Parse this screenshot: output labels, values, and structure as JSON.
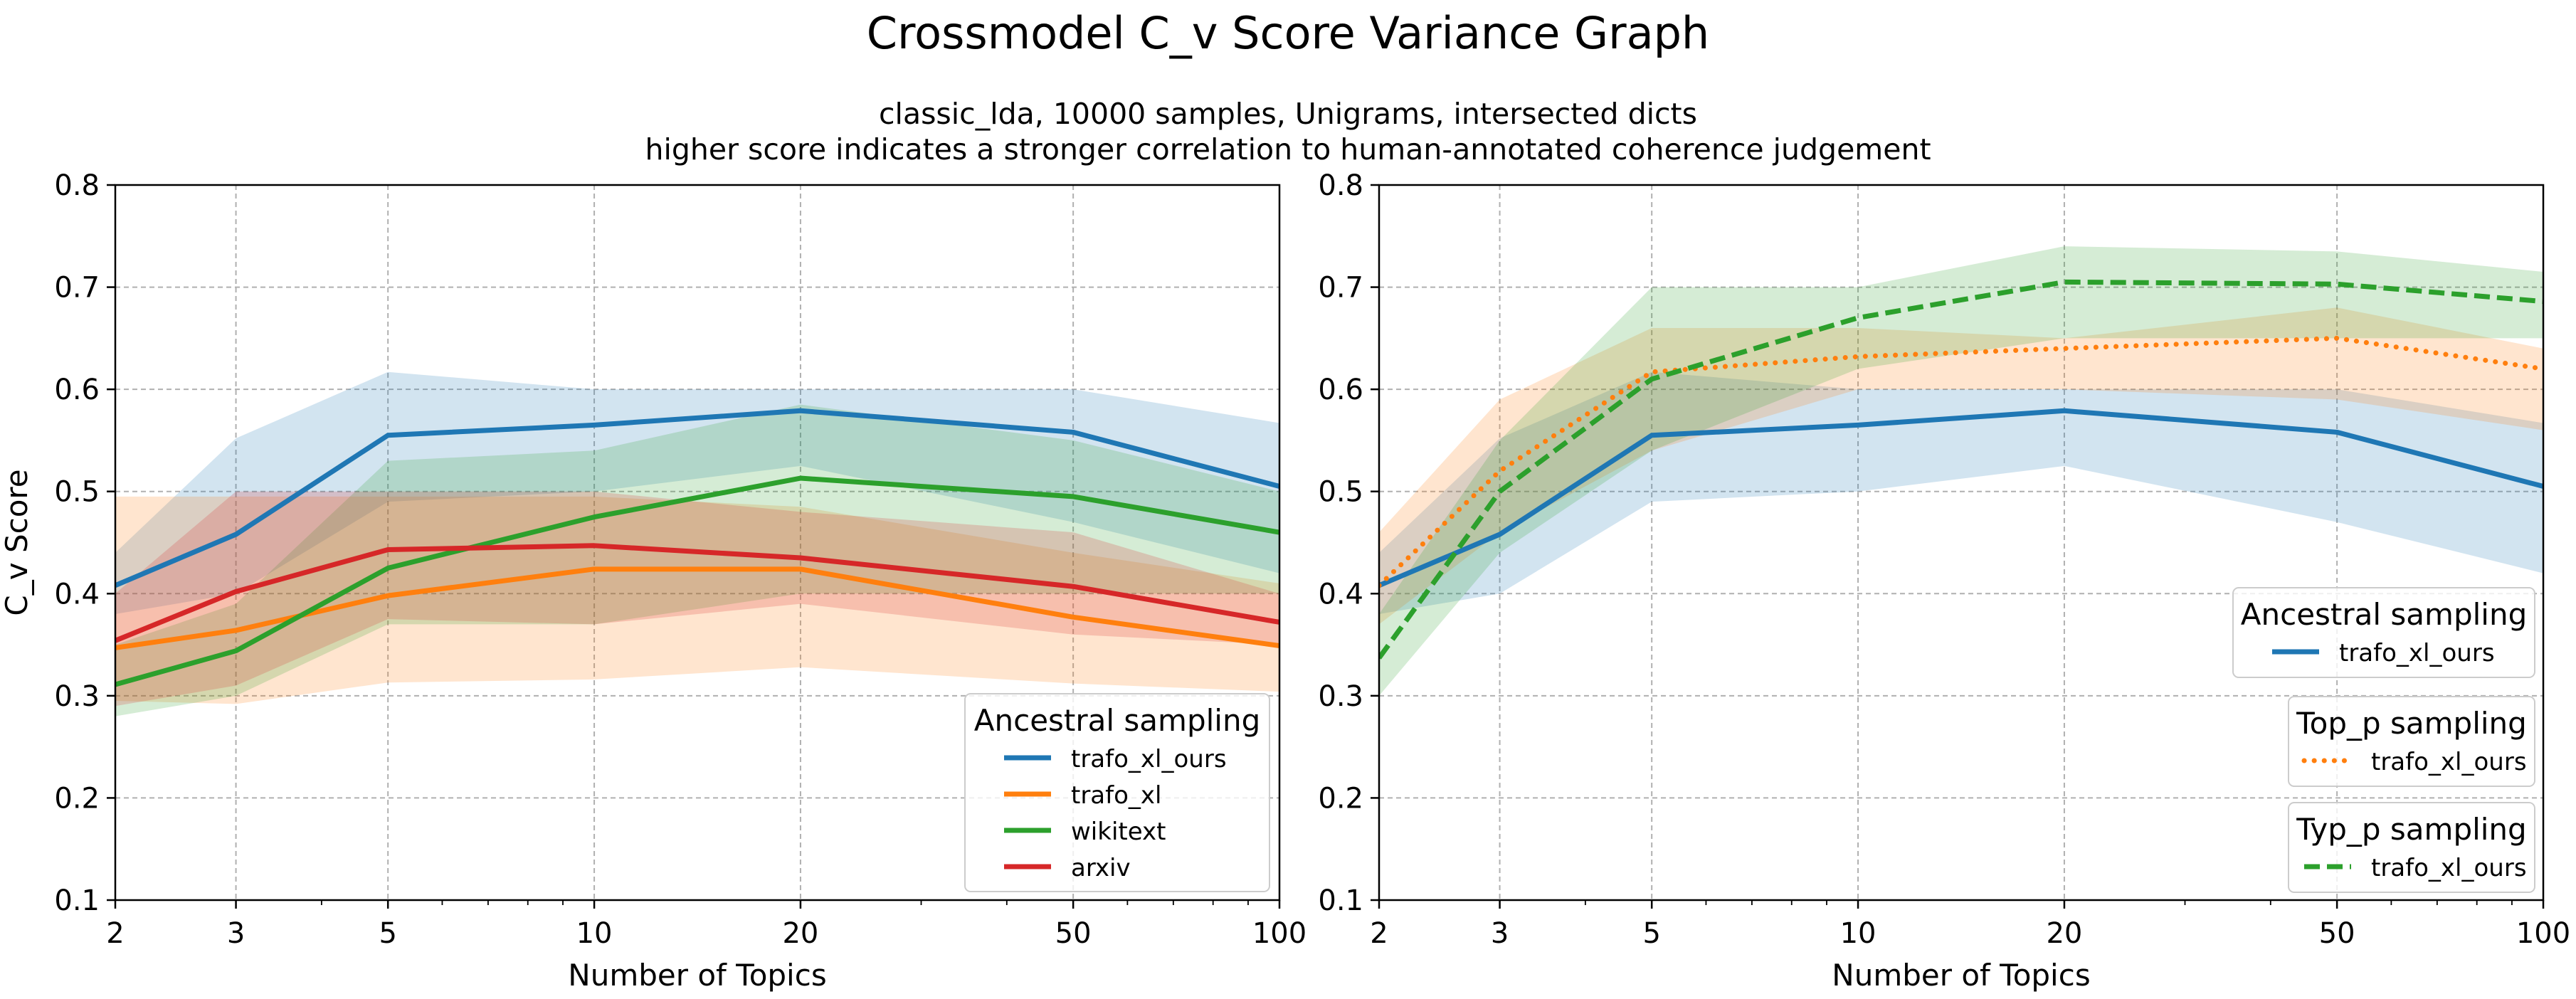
{
  "figure": {
    "title": "Crossmodel C_v Score Variance Graph",
    "subtitle_line1": "classic_lda, 10000 samples, Unigrams, intersected dicts",
    "subtitle_line2": "higher score indicates a stronger correlation to human-annotated coherence judgement"
  },
  "colors": {
    "trafo_xl_ours": "#1f77b4",
    "trafo_xl": "#ff7f0e",
    "wikitext": "#2ca02c",
    "arxiv": "#d62728"
  },
  "chart_data": [
    {
      "type": "line",
      "xlabel": "Number of Topics",
      "ylabel": "C_v Score",
      "xscale": "log",
      "xlim": [
        2,
        100
      ],
      "ylim": [
        0.1,
        0.8
      ],
      "x_ticks": [
        2,
        3,
        5,
        10,
        20,
        50,
        100
      ],
      "x_tick_labels": [
        "2",
        "3",
        "5",
        "10",
        "20",
        "50",
        "100"
      ],
      "y_ticks": [
        0.1,
        0.2,
        0.3,
        0.4,
        0.5,
        0.6,
        0.7,
        0.8
      ],
      "y_tick_labels": [
        "0.1",
        "0.2",
        "0.3",
        "0.4",
        "0.5",
        "0.6",
        "0.7",
        "0.8"
      ],
      "grid": true,
      "x": [
        2,
        3,
        5,
        10,
        20,
        50,
        100
      ],
      "series": [
        {
          "name": "trafo_xl_ours",
          "color": "#1f77b4",
          "style": "solid",
          "values": [
            0.408,
            0.458,
            0.555,
            0.565,
            0.579,
            0.558,
            0.505
          ],
          "band_low": [
            0.38,
            0.4,
            0.49,
            0.5,
            0.525,
            0.47,
            0.42
          ],
          "band_high": [
            0.44,
            0.552,
            0.617,
            0.6,
            0.6,
            0.6,
            0.567
          ]
        },
        {
          "name": "trafo_xl",
          "color": "#ff7f0e",
          "style": "solid",
          "values": [
            0.347,
            0.364,
            0.398,
            0.424,
            0.424,
            0.377,
            0.349
          ],
          "band_low": [
            0.295,
            0.292,
            0.313,
            0.316,
            0.328,
            0.312,
            0.304
          ],
          "band_high": [
            0.495,
            0.495,
            0.495,
            0.495,
            0.485,
            0.44,
            0.41
          ]
        },
        {
          "name": "wikitext",
          "color": "#2ca02c",
          "style": "solid",
          "values": [
            0.311,
            0.344,
            0.425,
            0.475,
            0.513,
            0.495,
            0.46
          ],
          "band_low": [
            0.28,
            0.3,
            0.37,
            0.37,
            0.4,
            0.4,
            0.4
          ],
          "band_high": [
            0.35,
            0.39,
            0.53,
            0.54,
            0.585,
            0.55,
            0.5
          ]
        },
        {
          "name": "arxiv",
          "color": "#d62728",
          "style": "solid",
          "values": [
            0.354,
            0.402,
            0.443,
            0.447,
            0.435,
            0.407,
            0.372
          ],
          "band_low": [
            0.29,
            0.31,
            0.375,
            0.37,
            0.39,
            0.36,
            0.35
          ],
          "band_high": [
            0.4,
            0.5,
            0.5,
            0.5,
            0.48,
            0.46,
            0.4
          ]
        }
      ],
      "legends": [
        {
          "title": "Ancestral sampling",
          "placement": "lower-right",
          "entries": [
            "trafo_xl_ours",
            "trafo_xl",
            "wikitext",
            "arxiv"
          ]
        }
      ]
    },
    {
      "type": "line",
      "xlabel": "Number of Topics",
      "ylabel": "",
      "xscale": "log",
      "xlim": [
        2,
        100
      ],
      "ylim": [
        0.1,
        0.8
      ],
      "x_ticks": [
        2,
        3,
        5,
        10,
        20,
        50,
        100
      ],
      "x_tick_labels": [
        "2",
        "3",
        "5",
        "10",
        "20",
        "50",
        "100"
      ],
      "y_ticks": [
        0.1,
        0.2,
        0.3,
        0.4,
        0.5,
        0.6,
        0.7,
        0.8
      ],
      "y_tick_labels": [
        "0.1",
        "0.2",
        "0.3",
        "0.4",
        "0.5",
        "0.6",
        "0.7",
        "0.8"
      ],
      "grid": true,
      "x": [
        2,
        3,
        5,
        10,
        20,
        50,
        100
      ],
      "series": [
        {
          "name": "trafo_xl_ours",
          "group": "Ancestral sampling",
          "color": "#1f77b4",
          "style": "solid",
          "values": [
            0.408,
            0.458,
            0.555,
            0.565,
            0.579,
            0.558,
            0.505
          ],
          "band_low": [
            0.38,
            0.4,
            0.49,
            0.5,
            0.525,
            0.47,
            0.42
          ],
          "band_high": [
            0.44,
            0.552,
            0.617,
            0.6,
            0.6,
            0.6,
            0.567
          ]
        },
        {
          "name": "trafo_xl_ours",
          "group": "Top_p sampling",
          "color": "#ff7f0e",
          "style": "dotted",
          "values": [
            0.408,
            0.52,
            0.617,
            0.632,
            0.64,
            0.65,
            0.62
          ],
          "band_low": [
            0.37,
            0.46,
            0.54,
            0.6,
            0.6,
            0.59,
            0.56
          ],
          "band_high": [
            0.46,
            0.59,
            0.66,
            0.66,
            0.65,
            0.68,
            0.64
          ]
        },
        {
          "name": "trafo_xl_ours",
          "group": "Typ_p sampling",
          "color": "#2ca02c",
          "style": "dashed",
          "values": [
            0.337,
            0.5,
            0.61,
            0.67,
            0.705,
            0.703,
            0.686
          ],
          "band_low": [
            0.3,
            0.44,
            0.54,
            0.62,
            0.65,
            0.65,
            0.65
          ],
          "band_high": [
            0.38,
            0.55,
            0.7,
            0.7,
            0.74,
            0.735,
            0.715
          ]
        }
      ],
      "legends": [
        {
          "title": "Ancestral sampling",
          "placement": "right",
          "entries": [
            "trafo_xl_ours"
          ],
          "series_index": [
            0
          ]
        },
        {
          "title": "Top_p sampling",
          "placement": "right",
          "entries": [
            "trafo_xl_ours"
          ],
          "series_index": [
            1
          ]
        },
        {
          "title": "Typ_p sampling",
          "placement": "lower-right",
          "entries": [
            "trafo_xl_ours"
          ],
          "series_index": [
            2
          ]
        }
      ]
    }
  ]
}
